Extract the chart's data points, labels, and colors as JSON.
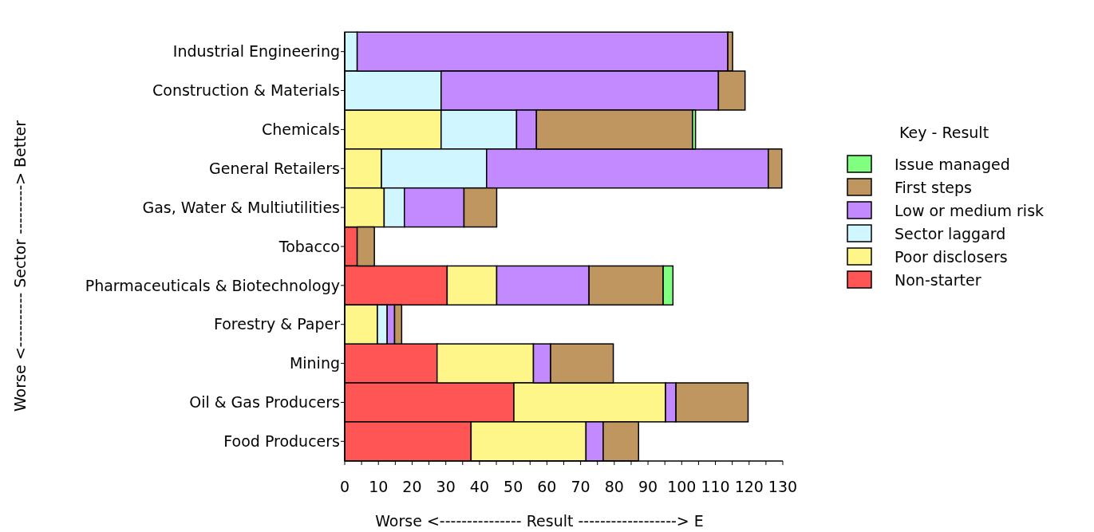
{
  "chart_data": {
    "type": "bar",
    "orientation": "horizontal",
    "stacked": true,
    "categories": [
      "Industrial Engineering",
      "Construction & Materials",
      "Chemicals",
      "General Retailers",
      "Gas, Water & Multiutilities",
      "Tobacco",
      "Pharmaceuticals & Biotechnology",
      "Forestry & Paper",
      "Mining",
      "Oil & Gas Producers",
      "Food Producers"
    ],
    "series": [
      {
        "name": "Non-starter",
        "color": "#ff5555",
        "values": [
          null,
          null,
          null,
          null,
          null,
          3.7,
          30.4,
          null,
          27.4,
          50.2,
          37.5
        ]
      },
      {
        "name": "Poor disclosers",
        "color": "#fff68a",
        "values": [
          null,
          null,
          28.6,
          10.9,
          11.7,
          null,
          14.7,
          9.7,
          28.6,
          45.0,
          34.1
        ]
      },
      {
        "name": "Sector laggard",
        "color": "#d0f6ff",
        "values": [
          3.7,
          28.6,
          22.4,
          31.2,
          6.0,
          null,
          null,
          2.9,
          null,
          null,
          null
        ]
      },
      {
        "name": "Low or medium risk",
        "color": "#c38aff",
        "values": [
          110.0,
          82.3,
          5.9,
          83.6,
          17.7,
          null,
          27.4,
          2.2,
          5.1,
          3.1,
          5.1
        ]
      },
      {
        "name": "First steps",
        "color": "#bf9660",
        "values": [
          1.4,
          7.9,
          46.3,
          4.0,
          9.7,
          5.1,
          22.0,
          2.1,
          18.6,
          21.4,
          10.5
        ]
      },
      {
        "name": "Issue managed",
        "color": "#80ff80",
        "values": [
          null,
          null,
          0.9,
          null,
          null,
          null,
          2.9,
          null,
          null,
          null,
          null
        ]
      }
    ],
    "xlim": [
      0,
      130
    ],
    "xticks": [
      0,
      {
        "value": 5,
        "label": null
      },
      10,
      {
        "value": 15,
        "label": null
      },
      20,
      {
        "value": 25,
        "label": null
      },
      30,
      {
        "value": 35,
        "label": null
      },
      40,
      {
        "value": 45,
        "label": null
      },
      50,
      {
        "value": 55,
        "label": null
      },
      60,
      {
        "value": 65,
        "label": null
      },
      70,
      {
        "value": 75,
        "label": null
      },
      80,
      {
        "value": 85,
        "label": null
      },
      90,
      {
        "value": 95,
        "label": null
      },
      100,
      {
        "value": 105,
        "label": null
      },
      110,
      {
        "value": 115,
        "label": null
      },
      120,
      {
        "value": 125,
        "label": null
      },
      130
    ],
    "xlabel": "Worse <---------------  Result ------------------> E",
    "ylabel": "Worse <---------- Sector ---------> Better",
    "legend_title": "Key - Result",
    "legend": "right",
    "grid": false
  }
}
